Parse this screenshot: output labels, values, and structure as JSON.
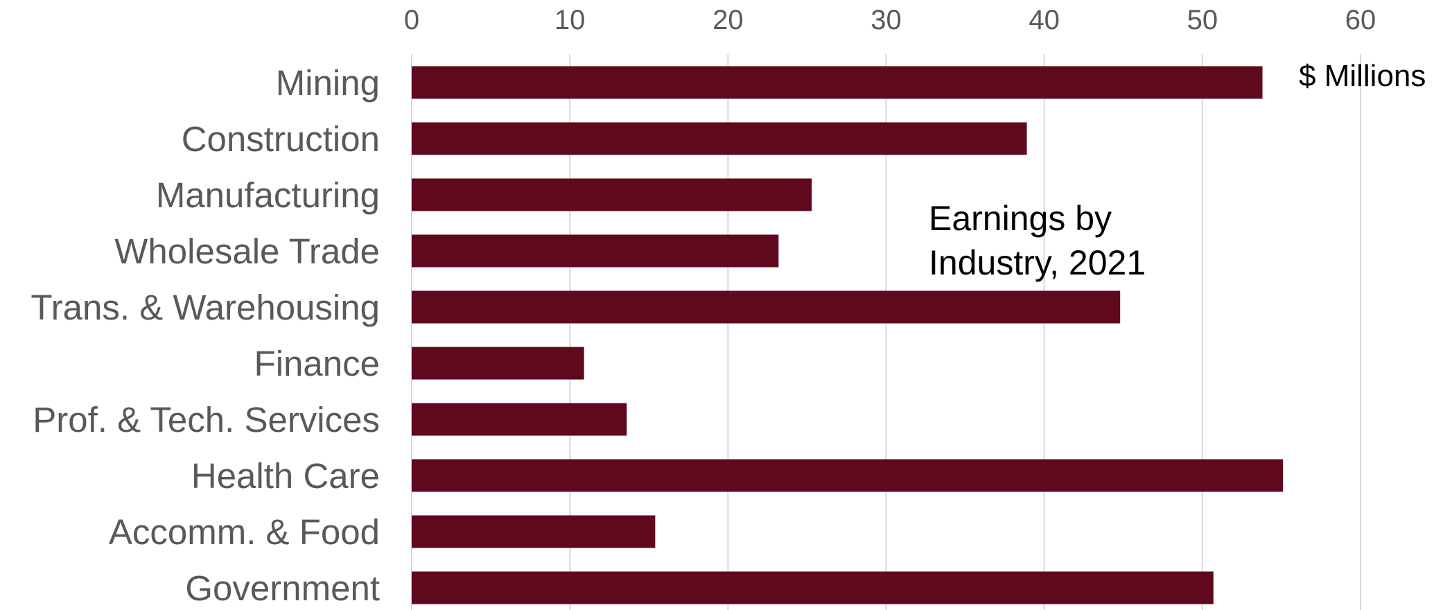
{
  "chart_data": {
    "type": "bar",
    "orientation": "horizontal",
    "categories": [
      "Mining",
      "Construction",
      "Manufacturing",
      "Wholesale Trade",
      "Trans. & Warehousing",
      "Finance",
      "Prof. & Tech. Services",
      "Health Care",
      "Accomm. & Food",
      "Government"
    ],
    "values": [
      53.8,
      38.9,
      25.3,
      23.2,
      44.8,
      10.9,
      13.6,
      55.1,
      15.4,
      50.7
    ],
    "xlim": [
      0,
      60
    ],
    "xticks": [
      0,
      10,
      20,
      30,
      40,
      50,
      60
    ],
    "xtick_labels": [
      "0",
      "10",
      "20",
      "30",
      "40",
      "50",
      "60"
    ],
    "x_axis_position": "top",
    "grid": true,
    "bar_color": "#5e0a1c",
    "annotations": [
      {
        "text": "Earnings by"
      },
      {
        "text": "Industry, 2021"
      }
    ],
    "unit_note": "$ Millions"
  }
}
